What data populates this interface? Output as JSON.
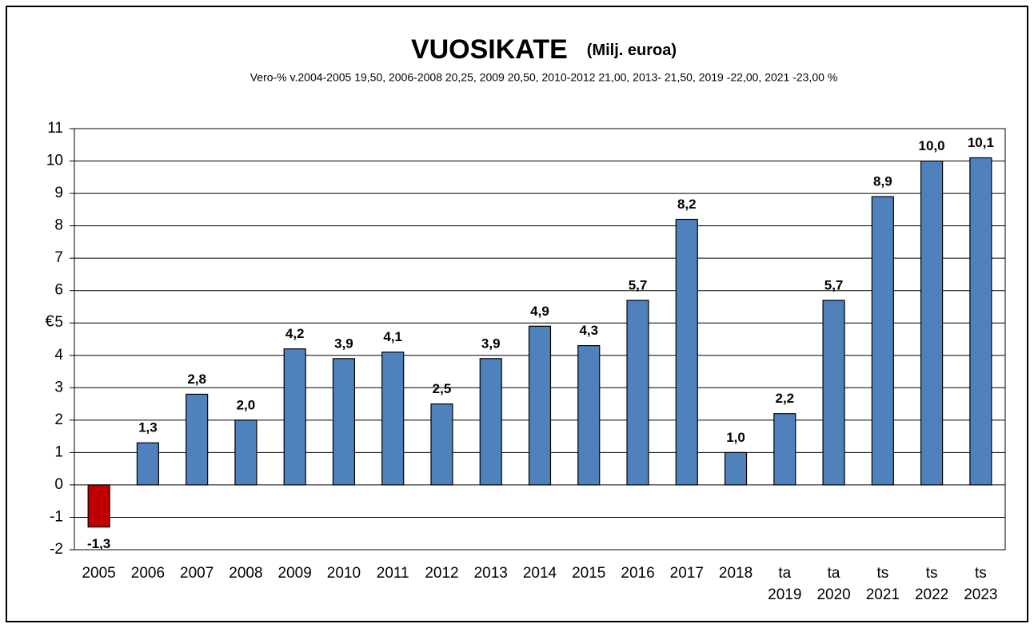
{
  "chart_data": {
    "type": "bar",
    "title": "VUOSIKATE",
    "title_unit": "(Milj. euroa)",
    "subtitle": "Vero-% v.2004-2005 19,50, 2006-2008 20,25, 2009 20,50, 2010-2012 21,00, 2013- 21,50, 2019 -22,00, 2021 -23,00 %",
    "y_label": "€",
    "categories": [
      [
        "2005"
      ],
      [
        "2006"
      ],
      [
        "2007"
      ],
      [
        "2008"
      ],
      [
        "2009"
      ],
      [
        "2010"
      ],
      [
        "2011"
      ],
      [
        "2012"
      ],
      [
        "2013"
      ],
      [
        "2014"
      ],
      [
        "2015"
      ],
      [
        "2016"
      ],
      [
        "2017"
      ],
      [
        "2018"
      ],
      [
        "ta",
        "2019"
      ],
      [
        "ta",
        "2020"
      ],
      [
        "ts",
        "2021"
      ],
      [
        "ts",
        "2022"
      ],
      [
        "ts",
        "2023"
      ]
    ],
    "values": [
      -1.3,
      1.3,
      2.8,
      2.0,
      4.2,
      3.9,
      4.1,
      2.5,
      3.9,
      4.9,
      4.3,
      5.7,
      8.2,
      1.0,
      2.2,
      5.7,
      8.9,
      10.0,
      10.1
    ],
    "value_labels": [
      "-1,3",
      "1,3",
      "2,8",
      "2,0",
      "4,2",
      "3,9",
      "4,1",
      "2,5",
      "3,9",
      "4,9",
      "4,3",
      "5,7",
      "8,2",
      "1,0",
      "2,2",
      "5,7",
      "8,9",
      "10,0",
      "10,1"
    ],
    "colors": [
      "#c00000",
      "#4f81bd",
      "#4f81bd",
      "#4f81bd",
      "#4f81bd",
      "#4f81bd",
      "#4f81bd",
      "#4f81bd",
      "#4f81bd",
      "#4f81bd",
      "#4f81bd",
      "#4f81bd",
      "#4f81bd",
      "#4f81bd",
      "#4f81bd",
      "#4f81bd",
      "#4f81bd",
      "#4f81bd",
      "#4f81bd"
    ],
    "ylim": [
      -2,
      11
    ],
    "yticks": [
      -2,
      -1,
      0,
      1,
      2,
      3,
      4,
      5,
      6,
      7,
      8,
      9,
      10,
      11
    ],
    "grid": true
  }
}
